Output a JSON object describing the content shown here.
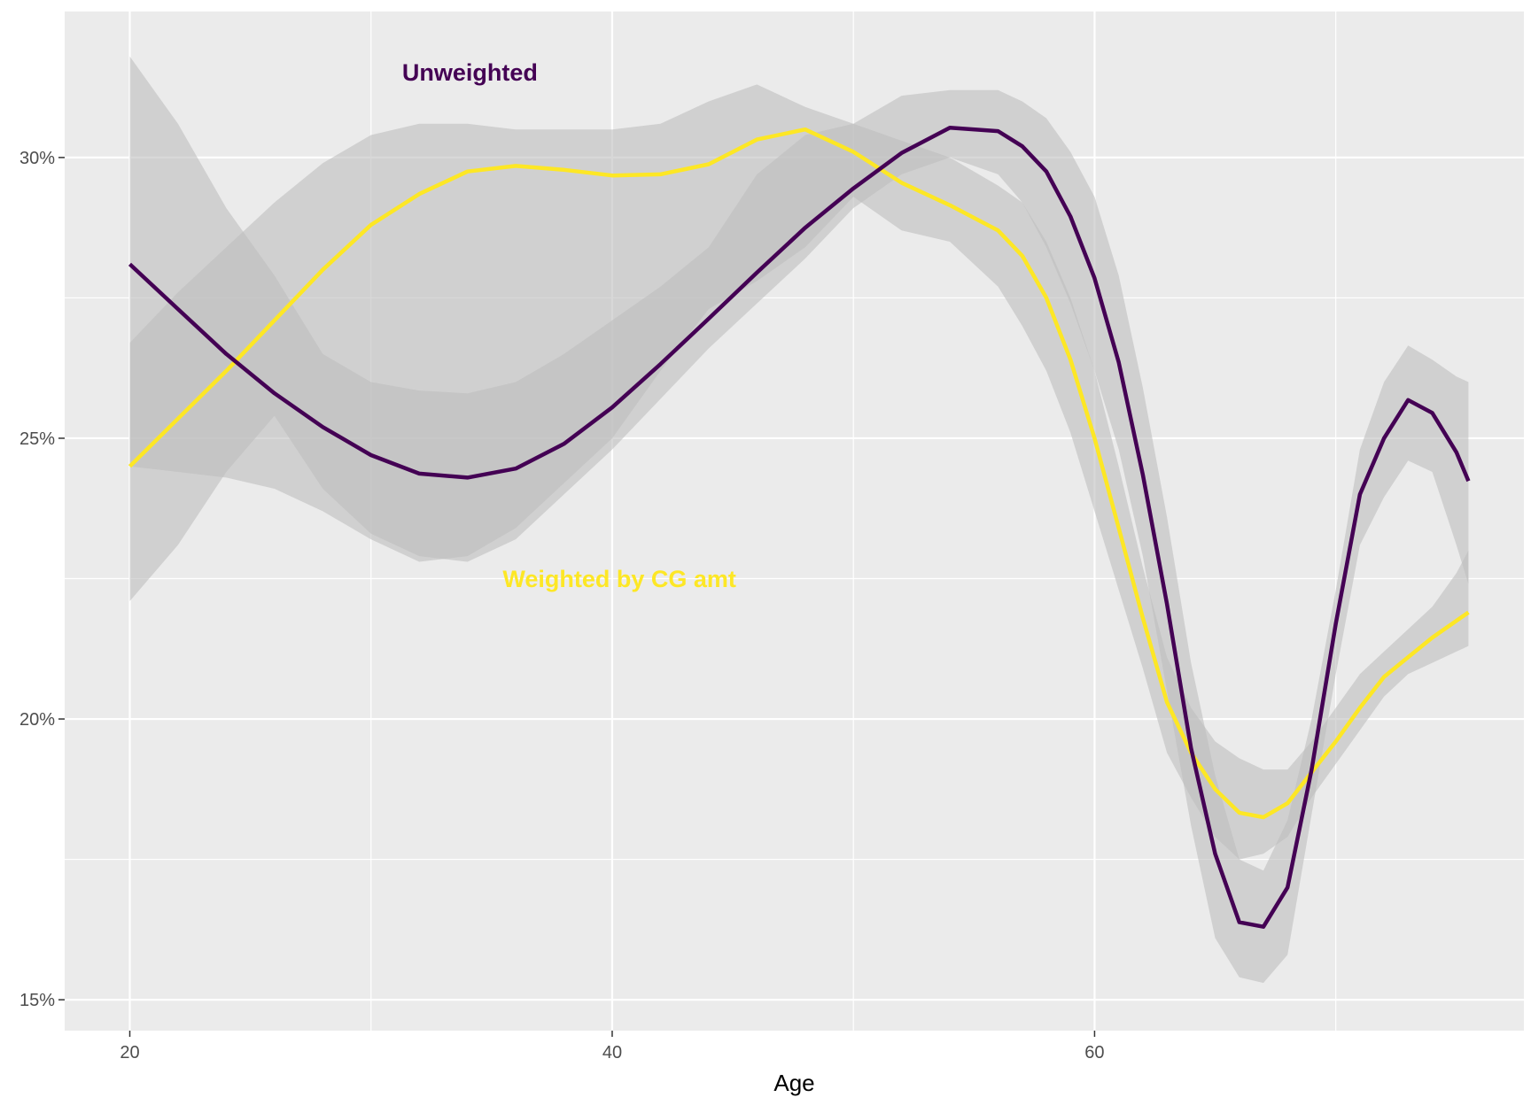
{
  "chart_data": {
    "type": "line",
    "title": "",
    "xlabel": "Age",
    "ylabel": "",
    "xlim": [
      17.3,
      77.8
    ],
    "ylim": [
      0.1445,
      0.326
    ],
    "x_ticks": [
      20,
      40,
      60
    ],
    "x_tick_labels": [
      "20",
      "40",
      "60"
    ],
    "x_minor_grid": [
      30,
      50,
      70
    ],
    "y_ticks": [
      0.15,
      0.2,
      0.25,
      0.3
    ],
    "y_tick_labels": [
      "15%",
      "20%",
      "25%",
      "30%"
    ],
    "y_minor_grid": [
      0.175,
      0.225,
      0.275
    ],
    "grid": true,
    "legend": "none",
    "colors": {
      "panel": "#ebebeb",
      "grid": "#ffffff",
      "ribbon": "#bebebe",
      "unweighted": "#440154",
      "weighted": "#fde725"
    },
    "series": [
      {
        "key": "unweighted",
        "x": [
          20,
          22,
          24,
          26,
          28,
          30,
          32,
          34,
          36,
          38,
          40,
          42,
          44,
          46,
          48,
          50,
          52,
          54,
          56,
          57,
          58,
          59,
          60,
          61,
          62,
          63,
          64,
          65,
          66,
          67,
          68,
          69,
          70,
          71,
          72,
          73,
          74,
          75,
          75.5
        ],
        "y": [
          0.281,
          0.273,
          0.265,
          0.258,
          0.252,
          0.247,
          0.2437,
          0.243,
          0.2446,
          0.249,
          0.2555,
          0.2632,
          0.2713,
          0.2795,
          0.2875,
          0.2945,
          0.3008,
          0.3053,
          0.3047,
          0.302,
          0.2975,
          0.2895,
          0.2785,
          0.2635,
          0.2435,
          0.2205,
          0.1948,
          0.176,
          0.1638,
          0.163,
          0.17,
          0.191,
          0.217,
          0.24,
          0.25,
          0.2568,
          0.2545,
          0.2475,
          0.2424
        ],
        "lower": [
          0.221,
          0.231,
          0.244,
          0.254,
          0.241,
          0.233,
          0.229,
          0.228,
          0.232,
          0.24,
          0.248,
          0.257,
          0.266,
          0.274,
          0.282,
          0.291,
          0.297,
          0.3,
          0.297,
          0.292,
          0.284,
          0.274,
          0.262,
          0.248,
          0.229,
          0.205,
          0.181,
          0.161,
          0.154,
          0.153,
          0.158,
          0.183,
          0.208,
          0.231,
          0.2395,
          0.246,
          0.244,
          0.231,
          0.224
        ],
        "upper": [
          0.318,
          0.306,
          0.291,
          0.279,
          0.265,
          0.26,
          0.2585,
          0.258,
          0.26,
          0.265,
          0.271,
          0.277,
          0.284,
          0.297,
          0.304,
          0.306,
          0.311,
          0.312,
          0.312,
          0.31,
          0.307,
          0.301,
          0.293,
          0.279,
          0.259,
          0.236,
          0.21,
          0.19,
          0.175,
          0.173,
          0.182,
          0.2,
          0.223,
          0.248,
          0.26,
          0.2665,
          0.264,
          0.261,
          0.26
        ]
      },
      {
        "key": "weighted",
        "x": [
          20,
          22,
          24,
          26,
          28,
          30,
          32,
          34,
          36,
          38,
          40,
          42,
          44,
          46,
          48,
          50,
          52,
          54,
          56,
          57,
          58,
          59,
          60,
          61,
          62,
          63,
          64,
          65,
          66,
          67,
          68,
          69,
          70,
          71,
          72,
          73,
          74,
          75,
          75.5
        ],
        "y": [
          0.245,
          0.2535,
          0.262,
          0.271,
          0.28,
          0.288,
          0.2935,
          0.2975,
          0.2985,
          0.2978,
          0.2968,
          0.297,
          0.2988,
          0.3032,
          0.305,
          0.301,
          0.2955,
          0.2915,
          0.287,
          0.2825,
          0.275,
          0.264,
          0.25,
          0.234,
          0.218,
          0.203,
          0.194,
          0.1875,
          0.1833,
          0.1825,
          0.185,
          0.1905,
          0.196,
          0.202,
          0.2075,
          0.211,
          0.2145,
          0.2175,
          0.219
        ],
        "lower": [
          0.245,
          0.244,
          0.243,
          0.241,
          0.237,
          0.232,
          0.228,
          0.229,
          0.234,
          0.242,
          0.25,
          0.262,
          0.273,
          0.278,
          0.284,
          0.293,
          0.287,
          0.285,
          0.277,
          0.27,
          0.262,
          0.251,
          0.237,
          0.223,
          0.209,
          0.194,
          0.186,
          0.179,
          0.175,
          0.176,
          0.179,
          0.186,
          0.192,
          0.198,
          0.204,
          0.208,
          0.21,
          0.212,
          0.213
        ],
        "upper": [
          0.267,
          0.276,
          0.284,
          0.292,
          0.299,
          0.304,
          0.306,
          0.306,
          0.305,
          0.305,
          0.305,
          0.306,
          0.31,
          0.313,
          0.309,
          0.306,
          0.303,
          0.3,
          0.295,
          0.292,
          0.285,
          0.275,
          0.262,
          0.245,
          0.227,
          0.211,
          0.202,
          0.196,
          0.193,
          0.191,
          0.191,
          0.196,
          0.202,
          0.208,
          0.212,
          0.216,
          0.22,
          0.226,
          0.23
        ]
      }
    ],
    "annotations": [
      {
        "key": "unweighted",
        "text": "Unweighted",
        "x": 34.1,
        "y": 0.3137
      },
      {
        "key": "weighted",
        "text": "Weighted by CG amt",
        "x": 40.3,
        "y": 0.2235
      }
    ]
  }
}
